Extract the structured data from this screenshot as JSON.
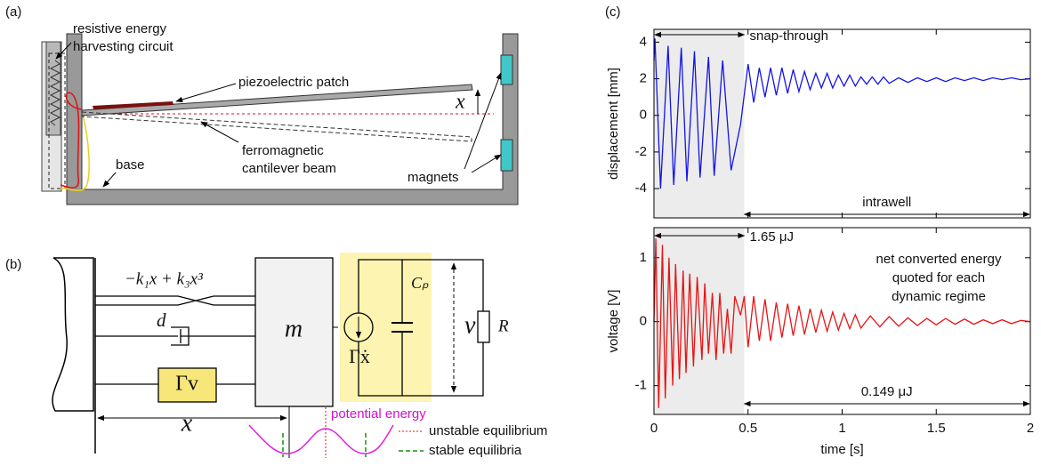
{
  "panel_a": {
    "label": "(a)",
    "circuit_label": [
      "resistive energy",
      "harvesting circuit"
    ],
    "patch_label": "piezoelectric patch",
    "beam_label": [
      "ferromagnetic",
      "cantilever beam"
    ],
    "base_label": "base",
    "magnets_label": "magnets",
    "displacement_symbol": "x"
  },
  "panel_b": {
    "label": "(b)",
    "spring_force": "−k₁x + k₃x³",
    "damping": "d",
    "coupling": "Γv",
    "mass": "m",
    "capacitance": "Cₚ",
    "current_source": "Γẋ",
    "voltage": "v",
    "resistance": "R",
    "displacement": "x",
    "potential_label": "potential energy",
    "legend": [
      "unstable equilibrium",
      "stable equilibria"
    ]
  },
  "panel_c": {
    "label": "(c)"
  },
  "chart_data": [
    {
      "type": "line",
      "ylabel": "displacement [mm]",
      "xlim": [
        0,
        2
      ],
      "xticks": [
        0,
        0.5,
        1,
        1.5,
        2
      ],
      "show_xtick_labels": false,
      "ylim": [
        -5.6,
        4.7
      ],
      "yticks": [
        -4,
        -2,
        0,
        2,
        4
      ],
      "shaded_xrange": [
        0,
        0.48
      ],
      "annotations": [
        "snap-through",
        "intrawell"
      ],
      "x": [
        0,
        0.005,
        0.035,
        0.075,
        0.105,
        0.145,
        0.175,
        0.215,
        0.245,
        0.29,
        0.32,
        0.365,
        0.41,
        0.46,
        0.5,
        0.53,
        0.56,
        0.59,
        0.62,
        0.65,
        0.68,
        0.71,
        0.74,
        0.77,
        0.8,
        0.83,
        0.86,
        0.89,
        0.92,
        0.95,
        0.98,
        1.01,
        1.04,
        1.07,
        1.1,
        1.13,
        1.16,
        1.19,
        1.22,
        1.25,
        1.3,
        1.35,
        1.4,
        1.45,
        1.5,
        1.55,
        1.6,
        1.65,
        1.7,
        1.75,
        1.8,
        1.85,
        1.9,
        1.95,
        2.0
      ],
      "series": [
        {
          "color": "#1414e6",
          "values": [
            3,
            4.2,
            -4.0,
            3.8,
            -3.8,
            3.7,
            -3.6,
            3.5,
            -3.4,
            3.2,
            -3.3,
            3.0,
            -3.0,
            -0.5,
            2.8,
            0.7,
            2.6,
            1.0,
            2.6,
            1.1,
            2.6,
            1.2,
            2.5,
            1.3,
            2.4,
            1.4,
            2.3,
            1.5,
            2.3,
            1.5,
            2.2,
            1.6,
            2.2,
            1.6,
            2.1,
            1.7,
            2.1,
            1.7,
            2.1,
            1.75,
            2.05,
            1.8,
            2.05,
            1.85,
            2.05,
            1.85,
            2.05,
            1.9,
            2.05,
            1.9,
            2.05,
            1.95,
            2.05,
            1.95,
            2.0
          ]
        }
      ]
    },
    {
      "type": "line",
      "xlabel": "time [s]",
      "ylabel": "voltage [V]",
      "xlim": [
        0,
        2
      ],
      "xticks": [
        0,
        0.5,
        1,
        1.5,
        2
      ],
      "show_xtick_labels": true,
      "ylim": [
        -1.45,
        1.47
      ],
      "yticks": [
        -1,
        0,
        1
      ],
      "shaded_xrange": [
        0,
        0.48
      ],
      "annotations": [
        "1.65 μJ",
        "0.149 μJ"
      ],
      "note": [
        "net converted energy",
        "quoted for each",
        "dynamic regime"
      ],
      "x": [
        0,
        0.01,
        0.025,
        0.045,
        0.06,
        0.08,
        0.1,
        0.115,
        0.135,
        0.155,
        0.17,
        0.19,
        0.21,
        0.23,
        0.255,
        0.27,
        0.29,
        0.31,
        0.33,
        0.35,
        0.37,
        0.39,
        0.41,
        0.43,
        0.46,
        0.48,
        0.5,
        0.53,
        0.56,
        0.59,
        0.62,
        0.65,
        0.68,
        0.71,
        0.74,
        0.77,
        0.8,
        0.83,
        0.86,
        0.89,
        0.92,
        0.95,
        0.98,
        1.01,
        1.04,
        1.07,
        1.1,
        1.15,
        1.2,
        1.25,
        1.3,
        1.35,
        1.4,
        1.45,
        1.5,
        1.55,
        1.6,
        1.65,
        1.7,
        1.75,
        1.8,
        1.85,
        1.9,
        1.95,
        2.0
      ],
      "series": [
        {
          "color": "#e61414",
          "values": [
            0,
            1.3,
            -1.35,
            1.2,
            -1.2,
            1.0,
            -1.0,
            0.9,
            -0.9,
            0.8,
            -0.8,
            0.75,
            -0.7,
            0.7,
            -0.6,
            0.6,
            -0.5,
            0.45,
            -0.6,
            0.45,
            -0.5,
            0.2,
            -0.5,
            0.4,
            0.1,
            0.4,
            -0.4,
            0.4,
            -0.3,
            0.35,
            -0.3,
            0.3,
            -0.25,
            0.28,
            -0.22,
            0.25,
            -0.2,
            0.2,
            -0.17,
            0.18,
            -0.15,
            0.15,
            -0.13,
            0.13,
            -0.11,
            0.11,
            -0.1,
            0.09,
            -0.08,
            0.08,
            -0.07,
            0.06,
            -0.06,
            0.05,
            -0.05,
            0.05,
            -0.04,
            0.04,
            -0.04,
            0.03,
            -0.03,
            0.03,
            -0.03,
            0.02,
            0.0
          ]
        }
      ]
    }
  ]
}
